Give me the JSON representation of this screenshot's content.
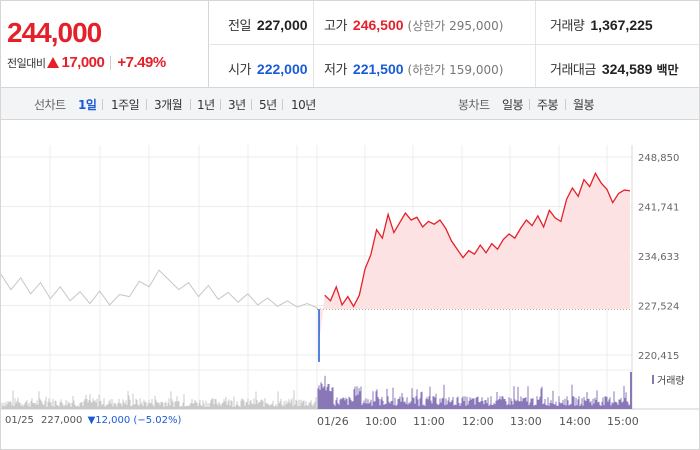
{
  "header": {
    "current_price": "244,000",
    "change_label": "전일대비",
    "change_value": "17,000",
    "change_pct": "+7.49%",
    "prev_close": {
      "label": "전일",
      "value": "227,000"
    },
    "open": {
      "label": "시가",
      "value": "222,000"
    },
    "high": {
      "label": "고가",
      "value": "246,500",
      "limit": "(상한가 295,000)"
    },
    "low": {
      "label": "저가",
      "value": "221,500",
      "limit": "(하한가 159,000)"
    },
    "volume": {
      "label": "거래량",
      "value": "1,367,225"
    },
    "amount": {
      "label": "거래대금",
      "value": "324,589",
      "unit": "백만"
    }
  },
  "toolbar": {
    "line_chart_label": "선차트",
    "periods": [
      "1일",
      "1주일",
      "3개월",
      "1년",
      "3년",
      "5년",
      "10년"
    ],
    "active_period": "1일",
    "candle_chart_label": "봉차트",
    "candle_periods": [
      "일봉",
      "주봉",
      "월봉"
    ]
  },
  "colors": {
    "up": "#e5202a",
    "down": "#1a5bd6",
    "prev_day_line": "#c6c6c6",
    "volume_prev": "#c9c9c9",
    "volume_today": "#8a77b8",
    "area_fill": "#fde2e3"
  },
  "chart": {
    "y_ticks": [
      "248,850",
      "241,741",
      "234,633",
      "227,524",
      "220,415"
    ],
    "x_ticks": [
      "01/26",
      "10:00",
      "11:00",
      "12:00",
      "13:00",
      "14:00",
      "15:00"
    ],
    "prev_day_label": "01/25",
    "prev_day_close": "227,000",
    "prev_day_change": "▼12,000 (−5.02%)",
    "volume_legend": "거래량"
  },
  "chart_data": {
    "type": "line",
    "ylim": [
      220415,
      248850
    ],
    "baseline": 227000,
    "series": [
      {
        "values": [
          232000,
          229800,
          231500,
          229200,
          230800,
          228500,
          230200,
          228200,
          229500,
          227800,
          229600,
          227600,
          229100,
          228800,
          231000,
          230200,
          232600,
          231200,
          229800,
          230800,
          228800,
          230400,
          228400,
          229400,
          228000,
          229200,
          227600,
          228600,
          227400,
          228200,
          227300,
          227800,
          227200
        ]
      },
      {
        "values": [
          222000,
          229000,
          228200,
          230200,
          227600,
          228800,
          227400,
          229000,
          232800,
          234800,
          238400,
          237200,
          240600,
          238000,
          239400,
          240800,
          239800,
          240200,
          238800,
          239600,
          239200,
          239800,
          238600,
          236800,
          235600,
          234400,
          235400,
          234900,
          236200,
          235100,
          236400,
          235600,
          237000,
          237800,
          237200,
          238600,
          239800,
          239000,
          240400,
          238800,
          241200,
          240100,
          239600,
          242800,
          244400,
          243200,
          245600,
          244600,
          246500,
          245100,
          244200,
          242300,
          243600,
          244100,
          244000
        ]
      }
    ]
  }
}
